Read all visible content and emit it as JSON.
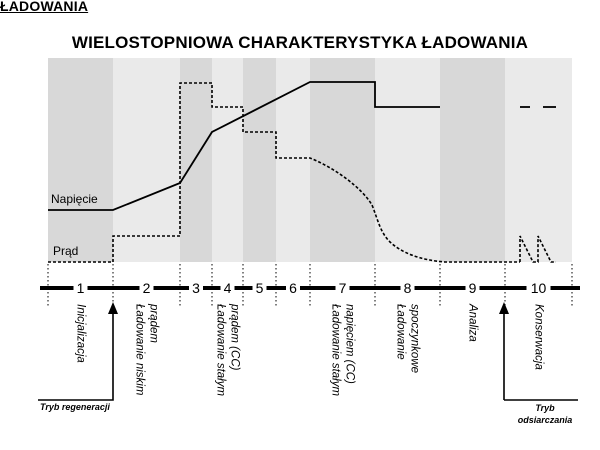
{
  "section_heading": "ŁADOWANIA",
  "title": "WIELOSTOPNIOWA CHARAKTERYSTYKA ŁADOWANIA",
  "curves": {
    "voltage_label": "Napięcie",
    "current_label": "Prąd"
  },
  "stages": [
    {
      "number": "1",
      "desc_lines": [
        "Inicjalizacja"
      ]
    },
    {
      "number": "2",
      "desc_lines": [
        "Ładowanie niskim",
        "prądem"
      ]
    },
    {
      "number": "3",
      "desc_lines": []
    },
    {
      "number": "4",
      "desc_lines": [
        "Ładowanie stałym",
        "prądem (CC)"
      ]
    },
    {
      "number": "5",
      "desc_lines": []
    },
    {
      "number": "6",
      "desc_lines": []
    },
    {
      "number": "7",
      "desc_lines": [
        "Ładowanie stałym",
        "napięciem (CC)"
      ]
    },
    {
      "number": "8",
      "desc_lines": [
        "Ładowanie",
        "spoczynkowe"
      ]
    },
    {
      "number": "9",
      "desc_lines": [
        "Analiza"
      ]
    },
    {
      "number": "10",
      "desc_lines": [
        "Konserwacja"
      ]
    }
  ],
  "modes": {
    "regeneration": "Tryb regeneracji",
    "desulfation_line1": "Tryb",
    "desulfation_line2": "odsiarczania"
  },
  "colors": {
    "shade_dark": "#d8d8d8",
    "shade_light": "#eaeaea",
    "line": "#000000"
  }
}
